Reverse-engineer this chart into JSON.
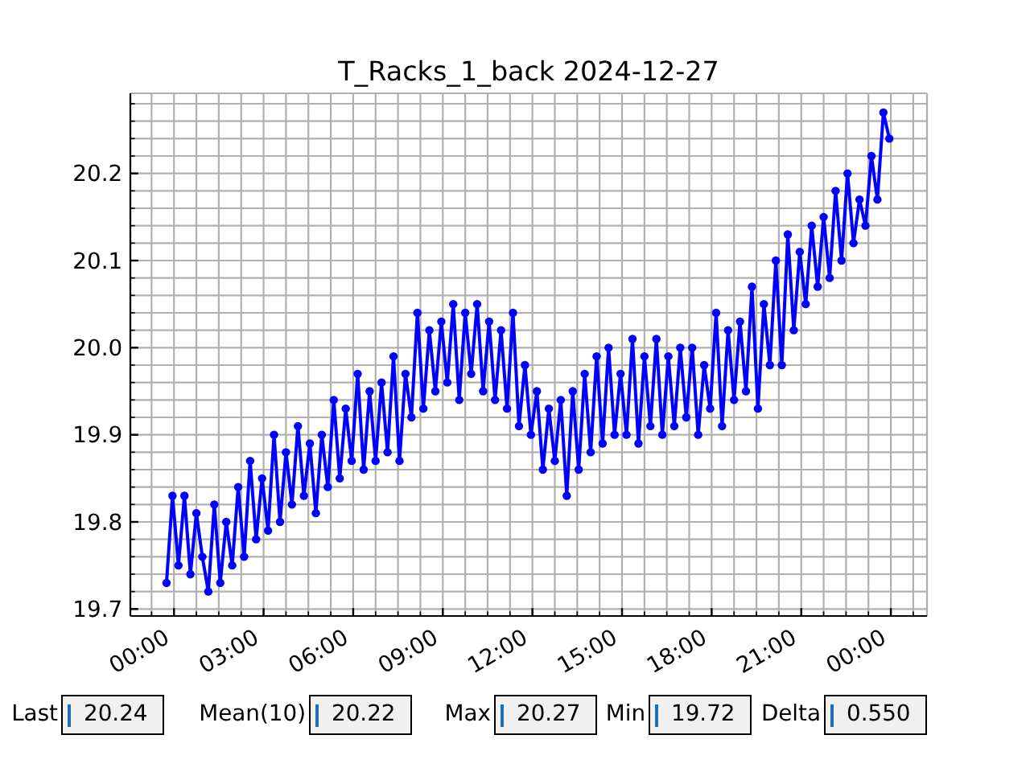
{
  "chart_data": {
    "type": "line",
    "title": "T_Racks_1_back 2024-12-27",
    "x": [
      -0.25,
      -0.05,
      0.15,
      0.35,
      0.55,
      0.75,
      0.95,
      1.15,
      1.35,
      1.55,
      1.75,
      1.95,
      2.15,
      2.35,
      2.55,
      2.75,
      2.95,
      3.15,
      3.35,
      3.55,
      3.75,
      3.95,
      4.15,
      4.35,
      4.55,
      4.75,
      4.95,
      5.15,
      5.35,
      5.55,
      5.75,
      5.95,
      6.15,
      6.35,
      6.55,
      6.75,
      6.95,
      7.15,
      7.35,
      7.55,
      7.75,
      7.95,
      8.15,
      8.35,
      8.55,
      8.75,
      8.95,
      9.15,
      9.35,
      9.55,
      9.75,
      9.95,
      10.15,
      10.35,
      10.55,
      10.75,
      10.95,
      11.15,
      11.35,
      11.55,
      11.75,
      11.95,
      12.15,
      12.35,
      12.55,
      12.75,
      12.95,
      13.15,
      13.35,
      13.55,
      13.75,
      13.95,
      14.15,
      14.35,
      14.55,
      14.75,
      14.95,
      15.15,
      15.35,
      15.55,
      15.75,
      15.95,
      16.15,
      16.35,
      16.55,
      16.75,
      16.95,
      17.15,
      17.35,
      17.55,
      17.75,
      17.95,
      18.15,
      18.35,
      18.55,
      18.75,
      18.95,
      19.15,
      19.35,
      19.55,
      19.75,
      19.95,
      20.15,
      20.35,
      20.55,
      20.75,
      20.95,
      21.15,
      21.35,
      21.55,
      21.75,
      21.95,
      22.15,
      22.35,
      22.55,
      22.75,
      22.95,
      23.15,
      23.35,
      23.55,
      23.75,
      23.95
    ],
    "values": [
      19.73,
      19.83,
      19.75,
      19.83,
      19.74,
      19.81,
      19.76,
      19.72,
      19.82,
      19.73,
      19.8,
      19.75,
      19.84,
      19.76,
      19.87,
      19.78,
      19.85,
      19.79,
      19.9,
      19.8,
      19.88,
      19.82,
      19.91,
      19.83,
      19.89,
      19.81,
      19.9,
      19.84,
      19.94,
      19.85,
      19.93,
      19.87,
      19.97,
      19.86,
      19.95,
      19.87,
      19.96,
      19.88,
      19.99,
      19.87,
      19.97,
      19.92,
      20.04,
      19.93,
      20.02,
      19.95,
      20.03,
      19.96,
      20.05,
      19.94,
      20.04,
      19.97,
      20.05,
      19.95,
      20.03,
      19.94,
      20.02,
      19.93,
      20.04,
      19.91,
      19.98,
      19.9,
      19.95,
      19.86,
      19.93,
      19.87,
      19.94,
      19.83,
      19.95,
      19.86,
      19.97,
      19.88,
      19.99,
      19.89,
      20.0,
      19.9,
      19.97,
      19.9,
      20.01,
      19.89,
      19.99,
      19.91,
      20.01,
      19.9,
      19.99,
      19.91,
      20.0,
      19.92,
      20.0,
      19.9,
      19.98,
      19.93,
      20.04,
      19.91,
      20.02,
      19.94,
      20.03,
      19.95,
      20.07,
      19.93,
      20.05,
      19.98,
      20.1,
      19.98,
      20.13,
      20.02,
      20.11,
      20.05,
      20.14,
      20.07,
      20.15,
      20.08,
      20.18,
      20.1,
      20.2,
      20.12,
      20.17,
      20.14,
      20.22,
      20.17,
      20.27,
      20.24
    ],
    "color": "#0000ff",
    "marker": "circle",
    "xlim": [
      -1.46,
      25.21
    ],
    "xticks": [
      {
        "value": -0.75,
        "label": null
      },
      {
        "value": 0,
        "label": "00:00"
      },
      {
        "value": 0.75,
        "label": null
      },
      {
        "value": 1.5,
        "label": null
      },
      {
        "value": 2.25,
        "label": null
      },
      {
        "value": 3,
        "label": "03:00"
      },
      {
        "value": 3.75,
        "label": null
      },
      {
        "value": 4.5,
        "label": null
      },
      {
        "value": 5.25,
        "label": null
      },
      {
        "value": 6,
        "label": "06:00"
      },
      {
        "value": 6.75,
        "label": null
      },
      {
        "value": 7.5,
        "label": null
      },
      {
        "value": 8.25,
        "label": null
      },
      {
        "value": 9,
        "label": "09:00"
      },
      {
        "value": 9.75,
        "label": null
      },
      {
        "value": 10.5,
        "label": null
      },
      {
        "value": 11.25,
        "label": null
      },
      {
        "value": 12,
        "label": "12:00"
      },
      {
        "value": 12.75,
        "label": null
      },
      {
        "value": 13.5,
        "label": null
      },
      {
        "value": 14.25,
        "label": null
      },
      {
        "value": 15,
        "label": "15:00"
      },
      {
        "value": 15.75,
        "label": null
      },
      {
        "value": 16.5,
        "label": null
      },
      {
        "value": 17.25,
        "label": null
      },
      {
        "value": 18,
        "label": "18:00"
      },
      {
        "value": 18.75,
        "label": null
      },
      {
        "value": 19.5,
        "label": null
      },
      {
        "value": 20.25,
        "label": null
      },
      {
        "value": 21,
        "label": "21:00"
      },
      {
        "value": 21.75,
        "label": null
      },
      {
        "value": 22.5,
        "label": null
      },
      {
        "value": 23.25,
        "label": null
      },
      {
        "value": 24,
        "label": "00:00"
      },
      {
        "value": 24.75,
        "label": null
      }
    ],
    "ylim": [
      19.692,
      20.292
    ],
    "yticks": [
      19.7,
      {
        "value": 19.72,
        "label": null
      },
      {
        "value": 19.74,
        "label": null
      },
      {
        "value": 19.76,
        "label": null
      },
      {
        "value": 19.78,
        "label": null
      },
      19.8,
      {
        "value": 19.82,
        "label": null
      },
      {
        "value": 19.84,
        "label": null
      },
      {
        "value": 19.86,
        "label": null
      },
      {
        "value": 19.88,
        "label": null
      },
      19.9,
      {
        "value": 19.92,
        "label": null
      },
      {
        "value": 19.94,
        "label": null
      },
      {
        "value": 19.96,
        "label": null
      },
      {
        "value": 19.98,
        "label": null
      },
      {
        "value": 20,
        "label": "20.0"
      },
      {
        "value": 20.02,
        "label": null
      },
      {
        "value": 20.04,
        "label": null
      },
      {
        "value": 20.06,
        "label": null
      },
      {
        "value": 20.08,
        "label": null
      },
      20.1,
      {
        "value": 20.12,
        "label": null
      },
      {
        "value": 20.14,
        "label": null
      },
      {
        "value": 20.16,
        "label": null
      },
      {
        "value": 20.18,
        "label": null
      },
      20.2,
      {
        "value": 20.22,
        "label": null
      },
      {
        "value": 20.24,
        "label": null
      },
      {
        "value": 20.26,
        "label": null
      },
      {
        "value": 20.28,
        "label": null
      }
    ],
    "grid": true,
    "annotations": [
      "Last",
      "20.24",
      "Mean(10)",
      "20.22",
      "Max",
      "20.27",
      "Min",
      "19.72",
      "Delta",
      "0.550"
    ]
  }
}
